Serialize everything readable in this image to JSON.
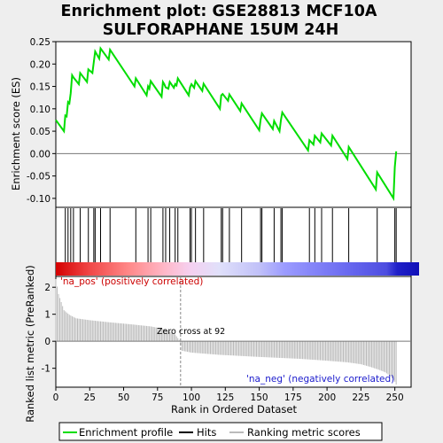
{
  "title_line1": "Enrichment plot: GSE28813 MCF10A",
  "title_line2": "SULFORAPHANE 15UM 24H",
  "es_ylabel": "Enrichment score (ES)",
  "rank_ylabel": "Ranked list metric (PreRanked)",
  "xlabel": "Rank in Ordered Dataset",
  "pos_label": "'na_pos' (positively correlated)",
  "neg_label": "'na_neg' (negatively correlated)",
  "zero_cross_label": "Zero cross at 92",
  "legend": {
    "enrichment_profile": "Enrichment profile",
    "hits": "Hits",
    "ranking_metric": "Ranking metric scores"
  },
  "colors": {
    "profile": "#00dd00",
    "hits": "#000000",
    "metric": "#bbbbbb",
    "pos_text": "#cc0000",
    "neg_text": "#1a1acc"
  },
  "chart_data": {
    "type": "line",
    "x_range": [
      0,
      262
    ],
    "x_ticks": [
      0,
      25,
      50,
      75,
      100,
      125,
      150,
      175,
      200,
      225,
      250
    ],
    "es_ylim": [
      -0.12,
      0.25
    ],
    "es_ticks": [
      "0.25",
      "0.20",
      "0.15",
      "0.10",
      "0.05",
      "0.00",
      "-0.05",
      "-0.10"
    ],
    "es_tick_values": [
      0.25,
      0.2,
      0.15,
      0.1,
      0.05,
      0.0,
      -0.05,
      -0.1
    ],
    "rank_ylim": [
      -1.7,
      2.4
    ],
    "rank_ticks": [
      "2",
      "1",
      "0",
      "-1"
    ],
    "rank_tick_values": [
      2,
      1,
      0,
      -1
    ],
    "zero_cross": 92,
    "n_genes": 252,
    "hits": [
      0,
      7,
      9,
      11,
      13,
      18,
      24,
      28,
      29,
      33,
      40,
      59,
      68,
      70,
      79,
      81,
      84,
      88,
      90,
      99,
      100,
      103,
      109,
      122,
      123,
      128,
      137,
      151,
      152,
      161,
      166,
      167,
      187,
      191,
      196,
      204,
      216,
      237,
      250,
      251
    ],
    "es_profile": [
      [
        0,
        0.075
      ],
      [
        6,
        0.05
      ],
      [
        7,
        0.085
      ],
      [
        8,
        0.083
      ],
      [
        9,
        0.115
      ],
      [
        10,
        0.112
      ],
      [
        11,
        0.135
      ],
      [
        12,
        0.175
      ],
      [
        13,
        0.17
      ],
      [
        17,
        0.155
      ],
      [
        18,
        0.18
      ],
      [
        23,
        0.16
      ],
      [
        24,
        0.188
      ],
      [
        27,
        0.18
      ],
      [
        28,
        0.205
      ],
      [
        29,
        0.228
      ],
      [
        32,
        0.212
      ],
      [
        33,
        0.235
      ],
      [
        39,
        0.21
      ],
      [
        40,
        0.232
      ],
      [
        58,
        0.15
      ],
      [
        59,
        0.168
      ],
      [
        67,
        0.13
      ],
      [
        68,
        0.15
      ],
      [
        69,
        0.145
      ],
      [
        70,
        0.162
      ],
      [
        78,
        0.127
      ],
      [
        79,
        0.16
      ],
      [
        80,
        0.155
      ],
      [
        81,
        0.148
      ],
      [
        83,
        0.145
      ],
      [
        84,
        0.16
      ],
      [
        87,
        0.147
      ],
      [
        88,
        0.155
      ],
      [
        89,
        0.152
      ],
      [
        90,
        0.168
      ],
      [
        98,
        0.13
      ],
      [
        99,
        0.148
      ],
      [
        100,
        0.155
      ],
      [
        102,
        0.147
      ],
      [
        103,
        0.162
      ],
      [
        108,
        0.14
      ],
      [
        109,
        0.156
      ],
      [
        121,
        0.1
      ],
      [
        122,
        0.13
      ],
      [
        123,
        0.133
      ],
      [
        127,
        0.118
      ],
      [
        128,
        0.132
      ],
      [
        136,
        0.095
      ],
      [
        137,
        0.112
      ],
      [
        150,
        0.052
      ],
      [
        151,
        0.075
      ],
      [
        152,
        0.09
      ],
      [
        160,
        0.055
      ],
      [
        161,
        0.073
      ],
      [
        165,
        0.05
      ],
      [
        166,
        0.075
      ],
      [
        167,
        0.092
      ],
      [
        186,
        0.007
      ],
      [
        187,
        0.03
      ],
      [
        190,
        0.02
      ],
      [
        191,
        0.04
      ],
      [
        195,
        0.025
      ],
      [
        196,
        0.045
      ],
      [
        203,
        0.018
      ],
      [
        204,
        0.04
      ],
      [
        215,
        -0.012
      ],
      [
        216,
        0.015
      ],
      [
        236,
        -0.08
      ],
      [
        237,
        -0.042
      ],
      [
        249,
        -0.1
      ],
      [
        250,
        -0.03
      ],
      [
        251,
        0.005
      ]
    ],
    "metric": [
      [
        0,
        2.3
      ],
      [
        2,
        1.75
      ],
      [
        4,
        1.45
      ],
      [
        6,
        1.15
      ],
      [
        10,
        0.98
      ],
      [
        15,
        0.85
      ],
      [
        25,
        0.78
      ],
      [
        40,
        0.7
      ],
      [
        55,
        0.63
      ],
      [
        70,
        0.55
      ],
      [
        80,
        0.45
      ],
      [
        88,
        0.25
      ],
      [
        91,
        0.05
      ],
      [
        92,
        -0.15
      ],
      [
        93,
        -0.35
      ],
      [
        100,
        -0.42
      ],
      [
        120,
        -0.5
      ],
      [
        150,
        -0.58
      ],
      [
        180,
        -0.65
      ],
      [
        200,
        -0.72
      ],
      [
        215,
        -0.78
      ],
      [
        225,
        -0.85
      ],
      [
        232,
        -0.95
      ],
      [
        238,
        -1.05
      ],
      [
        243,
        -1.15
      ],
      [
        247,
        -1.3
      ],
      [
        250,
        -1.5
      ],
      [
        251,
        -1.6
      ]
    ]
  }
}
